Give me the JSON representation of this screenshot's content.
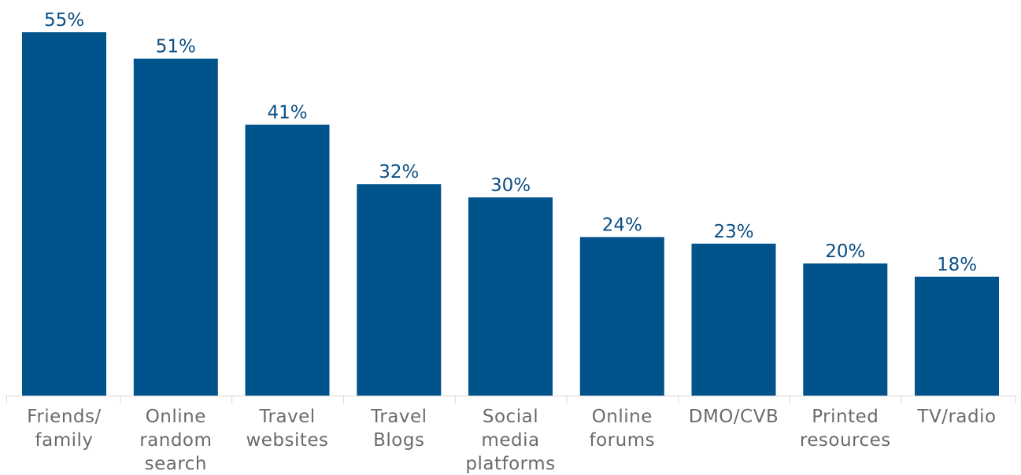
{
  "chart_data": {
    "type": "bar",
    "categories": [
      [
        "Friends/",
        "family"
      ],
      [
        "Online",
        "random",
        "search"
      ],
      [
        "Travel",
        "websites"
      ],
      [
        "Travel",
        "Blogs"
      ],
      [
        "Social",
        "media",
        "platforms"
      ],
      [
        "Online",
        "forums"
      ],
      [
        "DMO/CVB"
      ],
      [
        "Printed",
        "resources"
      ],
      [
        "TV/radio"
      ]
    ],
    "values": [
      55,
      51,
      41,
      32,
      30,
      24,
      23,
      20,
      18
    ],
    "value_labels": [
      "55%",
      "51%",
      "41%",
      "32%",
      "30%",
      "24%",
      "23%",
      "20%",
      "18%"
    ],
    "title": "",
    "xlabel": "",
    "ylabel": "",
    "ylim": [
      0,
      55
    ],
    "grid": false,
    "legend": "none",
    "bar_color": "#00538b",
    "value_label_color": "#0b4f85",
    "category_label_color": "#6b6b6b",
    "axis_color": "#d6d6d6"
  }
}
